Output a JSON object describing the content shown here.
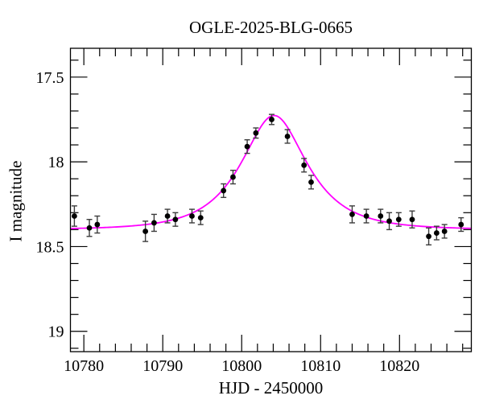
{
  "chart_data": {
    "type": "scatter",
    "title": "OGLE-2025-BLG-0665",
    "xlabel": "HJD - 2450000",
    "ylabel": "I magnitude",
    "xlim": [
      10778.3,
      10829.1
    ],
    "ylim": [
      17.33,
      19.12
    ],
    "y_axis_direction": "inverted-magnitude-axis",
    "grid": false,
    "legend": false,
    "x_major_ticks": [
      10780,
      10790,
      10800,
      10810,
      10820
    ],
    "x_major_tick_labels": [
      "10780",
      "10790",
      "10800",
      "10810",
      "10820"
    ],
    "x_minor_tick_step": 2,
    "y_major_ticks": [
      17.5,
      18,
      18.5,
      19
    ],
    "y_major_tick_labels": [
      "17.5",
      "18",
      "18.5",
      "19"
    ],
    "y_minor_tick_step": 0.1,
    "colors": {
      "model_curve": "#ff00ff",
      "data_points": "#000000",
      "error_bars": "#3c3c3c",
      "frame": "#000000",
      "background": "#ffffff"
    },
    "model_curve": {
      "type": "paczynski_microlensing",
      "t0": 10804.1,
      "tE_days": 6.5,
      "u0": 0.61,
      "baseline_mag": 18.4,
      "peak_mag": 17.73
    },
    "points": [
      [
        10778.8,
        18.32,
        0.06
      ],
      [
        10780.7,
        18.39,
        0.05
      ],
      [
        10781.7,
        18.37,
        0.05
      ],
      [
        10787.8,
        18.41,
        0.06
      ],
      [
        10788.9,
        18.36,
        0.05
      ],
      [
        10790.6,
        18.32,
        0.04
      ],
      [
        10791.6,
        18.34,
        0.04
      ],
      [
        10793.7,
        18.32,
        0.04
      ],
      [
        10794.8,
        18.33,
        0.04
      ],
      [
        10797.7,
        18.17,
        0.04
      ],
      [
        10798.9,
        18.09,
        0.04
      ],
      [
        10800.7,
        17.91,
        0.04
      ],
      [
        10801.8,
        17.83,
        0.03
      ],
      [
        10803.8,
        17.75,
        0.03
      ],
      [
        10805.8,
        17.85,
        0.04
      ],
      [
        10807.9,
        18.02,
        0.04
      ],
      [
        10808.8,
        18.12,
        0.04
      ],
      [
        10814.0,
        18.31,
        0.05
      ],
      [
        10815.8,
        18.32,
        0.04
      ],
      [
        10817.6,
        18.32,
        0.04
      ],
      [
        10818.7,
        18.35,
        0.05
      ],
      [
        10819.9,
        18.34,
        0.04
      ],
      [
        10821.6,
        18.34,
        0.05
      ],
      [
        10823.7,
        18.44,
        0.05
      ],
      [
        10824.7,
        18.42,
        0.04
      ],
      [
        10825.7,
        18.41,
        0.04
      ],
      [
        10827.8,
        18.37,
        0.04
      ]
    ]
  }
}
